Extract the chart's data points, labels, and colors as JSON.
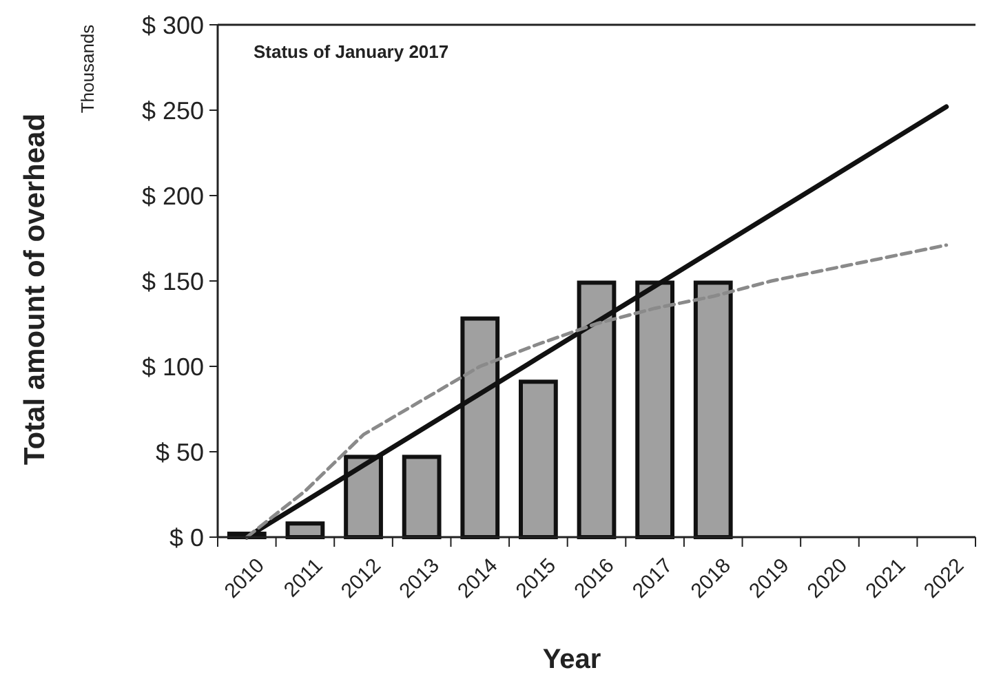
{
  "chart_data": {
    "type": "bar",
    "ylabel": "Total amount of overhead",
    "xlabel": "Year",
    "annotations": [
      "Thousands",
      "Status of January 2017"
    ],
    "categories": [
      "2010",
      "2011",
      "2012",
      "2013",
      "2014",
      "2015",
      "2016",
      "2017",
      "2018",
      "2019",
      "2020",
      "2021",
      "2022"
    ],
    "series": [
      {
        "color": "#a0a0a0",
        "values": [
          2,
          8,
          47,
          47,
          128,
          91,
          149,
          149,
          149,
          null,
          null,
          null,
          null
        ]
      },
      {
        "type": "line",
        "color": "#111111",
        "line_style": "solid",
        "values": [
          0,
          21,
          42,
          63,
          84,
          105,
          126,
          147,
          168,
          189,
          210,
          231,
          252
        ]
      },
      {
        "type": "line",
        "color": "#8a8a8a",
        "line_style": "dashed",
        "values": [
          0,
          27,
          60,
          80,
          100,
          113,
          125,
          134,
          141,
          150,
          157,
          164,
          171
        ]
      }
    ],
    "ylim": [
      0,
      300
    ],
    "yticks": [
      {
        "value": 0,
        "label": "$ 0"
      },
      {
        "value": 50,
        "label": "$ 50"
      },
      {
        "value": 100,
        "label": "$ 100"
      },
      {
        "value": 150,
        "label": "$ 150"
      },
      {
        "value": 200,
        "label": "$ 200"
      },
      {
        "value": 250,
        "label": "$ 250"
      },
      {
        "value": 300,
        "label": "$ 300"
      }
    ],
    "grid": false,
    "marker": "none"
  }
}
